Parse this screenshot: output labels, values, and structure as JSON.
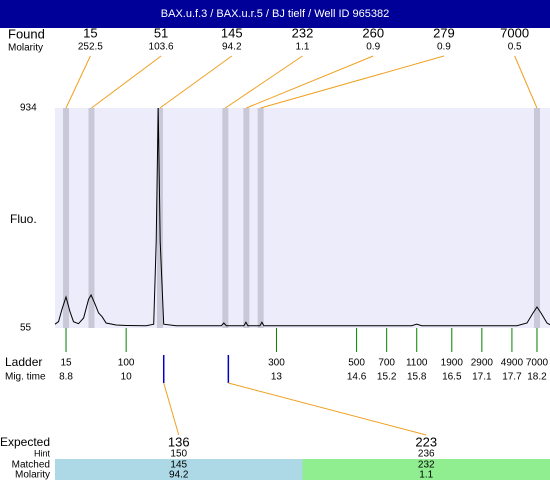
{
  "chart_data": {
    "type": "line",
    "title": "BAX.u.f.3 / BAX.u.r.5 / BJ tielf / Well ID 965382",
    "y_label": "Fluo.",
    "ylim": [
      55,
      934
    ],
    "yticks": [
      55,
      934
    ],
    "xlim": [
      8.58,
      18.46
    ],
    "found": {
      "label": "Found",
      "sub_label": "Molarity",
      "sizes": [
        15,
        51,
        145,
        232,
        260,
        279,
        7000
      ],
      "molarity": [
        252.5,
        103.6,
        94.2,
        1.1,
        0.9,
        0.9,
        0.5
      ]
    },
    "ladder": {
      "label": "Ladder",
      "sub_label": "Mig. time",
      "sizes": [
        15,
        100,
        300,
        500,
        700,
        1100,
        1900,
        2900,
        4900,
        7000
      ],
      "times": [
        8.8,
        10,
        13,
        14.6,
        15.2,
        15.8,
        16.5,
        17.1,
        17.7,
        18.2
      ]
    },
    "expected": {
      "label": "Expected",
      "hint_label": "Hint",
      "matched_label": "Matched",
      "molarity_label": "Molarity",
      "sizes": [
        136,
        223
      ],
      "hint": [
        150,
        236
      ],
      "matched": [
        145,
        232
      ],
      "molarity": [
        94.2,
        1.1
      ],
      "colors": [
        "#add8e6",
        "#90ee90"
      ]
    },
    "trace": {
      "color": "#000000",
      "x": [
        8.58,
        8.65,
        8.72,
        8.8,
        8.88,
        8.95,
        9.05,
        9.15,
        9.25,
        9.3,
        9.38,
        9.45,
        9.52,
        9.6,
        9.8,
        10.0,
        10.4,
        10.55,
        10.6,
        10.64,
        10.68,
        10.75,
        11.0,
        11.9,
        11.95,
        12.0,
        12.35,
        12.39,
        12.43,
        12.67,
        12.71,
        12.75,
        14.0,
        15.7,
        15.8,
        15.9,
        17.8,
        18.0,
        18.12,
        18.2,
        18.28,
        18.4,
        18.46
      ],
      "values": [
        70,
        80,
        130,
        179,
        120,
        80,
        72,
        95,
        170,
        187,
        150,
        115,
        100,
        75,
        67,
        65,
        64,
        70,
        400,
        934,
        400,
        70,
        64,
        64,
        75,
        64,
        64,
        78,
        64,
        64,
        78,
        64,
        64,
        64,
        70,
        64,
        64,
        75,
        115,
        139,
        115,
        75,
        68
      ]
    }
  }
}
